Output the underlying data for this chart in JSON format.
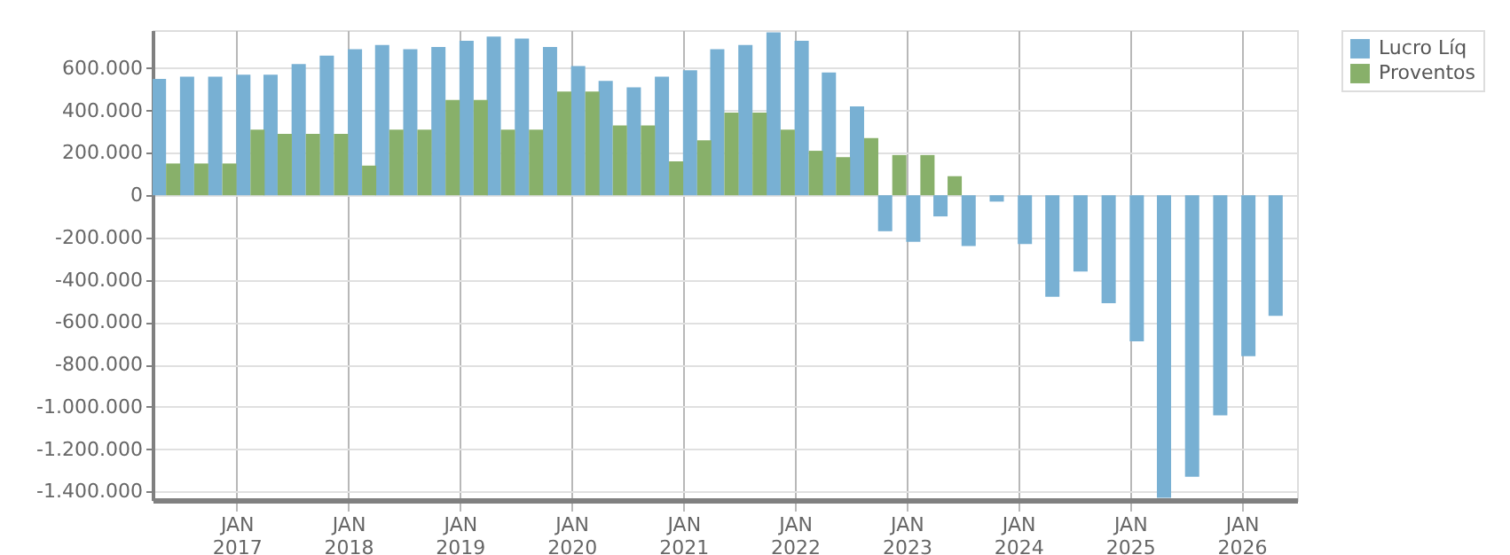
{
  "chart_data": {
    "type": "bar",
    "x": [
      "2016-05-15",
      "2016-08-15",
      "2016-11-15",
      "2017-02-15",
      "2017-05-15",
      "2017-08-15",
      "2017-11-15",
      "2018-02-15",
      "2018-05-15",
      "2018-08-15",
      "2018-11-15",
      "2019-02-15",
      "2019-05-15",
      "2019-08-15",
      "2019-11-15",
      "2020-02-15",
      "2020-05-15",
      "2020-08-15",
      "2020-11-15",
      "2021-02-15",
      "2021-05-15",
      "2021-08-15",
      "2021-11-15",
      "2022-02-15",
      "2022-05-15",
      "2022-08-15",
      "2022-11-15",
      "2023-02-15",
      "2023-05-15",
      "2023-08-15",
      "2023-11-15",
      "2024-02-15",
      "2024-05-15",
      "2024-08-15",
      "2024-11-15",
      "2025-02-15",
      "2025-05-15",
      "2025-08-15",
      "2025-11-15",
      "2026-02-15",
      "2026-05-15"
    ],
    "series": [
      {
        "name": "Lucro Líq",
        "color": "#78b0d3",
        "values": [
          550000,
          560000,
          560000,
          570000,
          570000,
          620000,
          660000,
          690000,
          710000,
          690000,
          700000,
          730000,
          750000,
          740000,
          700000,
          610000,
          540000,
          510000,
          560000,
          590000,
          690000,
          710000,
          770000,
          730000,
          580000,
          420000,
          -170000,
          -220000,
          -100000,
          -240000,
          -30000,
          -230000,
          -480000,
          -360000,
          -510000,
          -690000,
          -1430000,
          -1330000,
          -1040000,
          -760000,
          -570000
        ]
      },
      {
        "name": "Proventos",
        "color": "#88b06a",
        "values": [
          150000,
          150000,
          150000,
          310000,
          290000,
          290000,
          290000,
          140000,
          310000,
          310000,
          450000,
          450000,
          310000,
          310000,
          490000,
          490000,
          330000,
          330000,
          160000,
          260000,
          390000,
          390000,
          310000,
          210000,
          180000,
          270000,
          190000,
          190000,
          90000,
          null,
          null,
          null,
          null,
          null,
          null,
          null,
          null,
          null,
          null,
          null,
          null
        ]
      }
    ],
    "xlim": [
      "2016-04-01",
      "2026-07-01"
    ],
    "xticks": [
      {
        "value": "2017-01-01",
        "label": "JAN 2017"
      },
      {
        "value": "2018-01-01",
        "label": "JAN 2018"
      },
      {
        "value": "2019-01-01",
        "label": "JAN 2019"
      },
      {
        "value": "2020-01-01",
        "label": "JAN 2020"
      },
      {
        "value": "2021-01-01",
        "label": "JAN 2021"
      },
      {
        "value": "2022-01-01",
        "label": "JAN 2022"
      },
      {
        "value": "2023-01-01",
        "label": "JAN 2023"
      },
      {
        "value": "2024-01-01",
        "label": "JAN 2024"
      },
      {
        "value": "2025-01-01",
        "label": "JAN 2025"
      },
      {
        "value": "2026-01-01",
        "label": "JAN 2026"
      }
    ],
    "ylim": [
      -1440000,
      780000
    ],
    "yticks": [
      {
        "value": -1400000,
        "label": "-1.400.000"
      },
      {
        "value": -1200000,
        "label": "-1.200.000"
      },
      {
        "value": -1000000,
        "label": "-1.000.000"
      },
      {
        "value": -800000,
        "label": "-800.000"
      },
      {
        "value": -600000,
        "label": "-600.000"
      },
      {
        "value": -400000,
        "label": "-400.000"
      },
      {
        "value": -200000,
        "label": "-200.000"
      },
      0,
      {
        "value": 200000,
        "label": "200.000"
      },
      {
        "value": 400000,
        "label": "400.000"
      },
      {
        "value": 600000,
        "label": "600.000"
      }
    ],
    "grid": true,
    "legend": "top right"
  }
}
